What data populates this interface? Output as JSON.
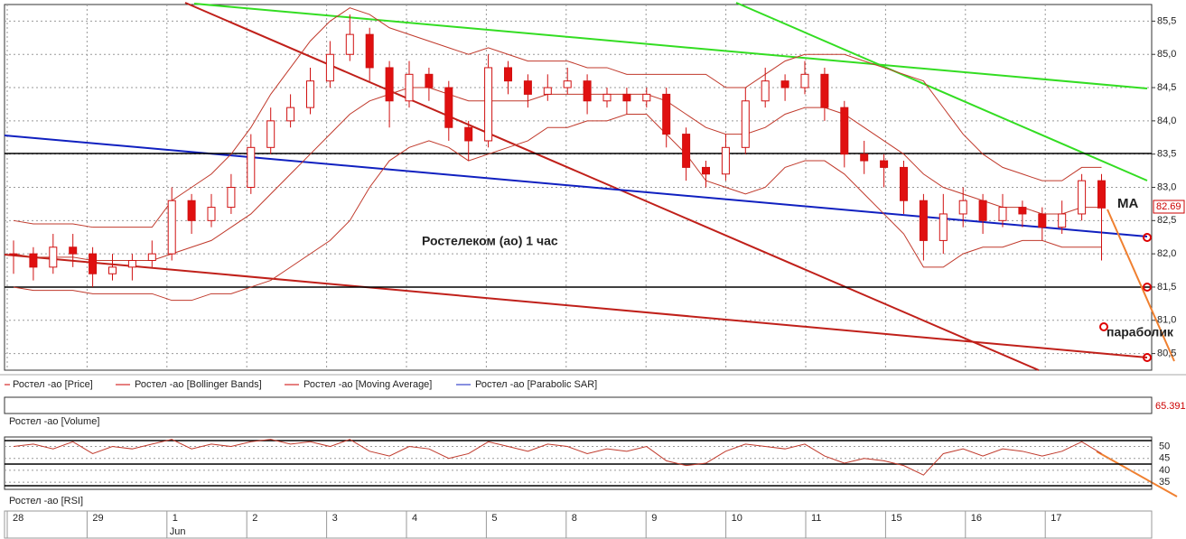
{
  "chart_data": {
    "type": "candlestick",
    "title": "Ростелеком (ао)    1 час",
    "annotations": {
      "ma": "MA",
      "sar": "параболик"
    },
    "last_price_label": "82.69",
    "legend": [
      "Ростел -ао [Price]",
      "Ростел -ао [Bollinger Bands]",
      "Ростел -ао [Moving Average]",
      "Ростел -ао [Parabolic SAR]"
    ],
    "volume_title": "Ростел -ао [Volume]",
    "volume_label": "65.391",
    "rsi_title": "Ростел -ао [RSI]",
    "date_labels": [
      "28",
      "29",
      "1",
      "2",
      "3",
      "4",
      "5",
      "8",
      "9",
      "10",
      "11",
      "15",
      "16",
      "17"
    ],
    "month_label": "Jun",
    "ylim": [
      80.25,
      85.75
    ],
    "yticks": [
      {
        "value": 80.5,
        "label": "80,5"
      },
      {
        "value": 81,
        "label": "81,0"
      },
      {
        "value": 81.5,
        "label": "81,5"
      },
      {
        "value": 82,
        "label": "82,0"
      },
      {
        "value": 82.5,
        "label": "82,5"
      },
      {
        "value": 83,
        "label": "83,0"
      },
      {
        "value": 83.5,
        "label": "83,5"
      },
      {
        "value": 84,
        "label": "84,0"
      },
      {
        "value": 84.5,
        "label": "84,5"
      },
      {
        "value": 85,
        "label": "85,0"
      },
      {
        "value": 85.5,
        "label": "85,5"
      }
    ],
    "candles": [
      [
        82.0,
        82.2,
        81.7,
        82.0
      ],
      [
        82.0,
        82.1,
        81.6,
        81.8
      ],
      [
        81.8,
        82.3,
        81.7,
        82.1
      ],
      [
        82.1,
        82.3,
        81.8,
        82.0
      ],
      [
        82.0,
        82.1,
        81.5,
        81.7
      ],
      [
        81.7,
        82.0,
        81.6,
        81.8
      ],
      [
        81.8,
        82.0,
        81.6,
        81.9
      ],
      [
        81.9,
        82.2,
        81.8,
        82.0
      ],
      [
        82.0,
        83.0,
        81.9,
        82.8
      ],
      [
        82.8,
        82.9,
        82.3,
        82.5
      ],
      [
        82.5,
        82.9,
        82.4,
        82.7
      ],
      [
        82.7,
        83.2,
        82.6,
        83.0
      ],
      [
        83.0,
        83.8,
        82.9,
        83.6
      ],
      [
        83.6,
        84.2,
        83.5,
        84.0
      ],
      [
        84.0,
        84.4,
        83.9,
        84.2
      ],
      [
        84.2,
        84.8,
        84.1,
        84.6
      ],
      [
        84.6,
        85.2,
        84.5,
        85.0
      ],
      [
        85.0,
        85.6,
        84.9,
        85.3
      ],
      [
        85.3,
        85.4,
        84.6,
        84.8
      ],
      [
        84.8,
        84.9,
        83.9,
        84.3
      ],
      [
        84.3,
        84.9,
        84.2,
        84.7
      ],
      [
        84.7,
        84.8,
        84.3,
        84.5
      ],
      [
        84.5,
        84.6,
        83.7,
        83.9
      ],
      [
        83.9,
        84.0,
        83.4,
        83.7
      ],
      [
        83.7,
        85.0,
        83.6,
        84.8
      ],
      [
        84.8,
        84.9,
        84.4,
        84.6
      ],
      [
        84.6,
        84.7,
        84.2,
        84.4
      ],
      [
        84.4,
        84.7,
        84.3,
        84.5
      ],
      [
        84.5,
        84.8,
        84.4,
        84.6
      ],
      [
        84.6,
        84.7,
        84.1,
        84.3
      ],
      [
        84.3,
        84.5,
        84.2,
        84.4
      ],
      [
        84.4,
        84.5,
        84.1,
        84.3
      ],
      [
        84.3,
        84.5,
        84.2,
        84.4
      ],
      [
        84.4,
        84.5,
        83.6,
        83.8
      ],
      [
        83.8,
        83.9,
        83.1,
        83.3
      ],
      [
        83.3,
        83.4,
        83.0,
        83.2
      ],
      [
        83.2,
        83.8,
        83.1,
        83.6
      ],
      [
        83.6,
        84.5,
        83.5,
        84.3
      ],
      [
        84.3,
        84.8,
        84.2,
        84.6
      ],
      [
        84.6,
        84.7,
        84.3,
        84.5
      ],
      [
        84.5,
        84.9,
        84.4,
        84.7
      ],
      [
        84.7,
        84.8,
        84.0,
        84.2
      ],
      [
        84.2,
        84.3,
        83.3,
        83.5
      ],
      [
        83.5,
        83.7,
        83.2,
        83.4
      ],
      [
        83.4,
        83.5,
        83.0,
        83.3
      ],
      [
        83.3,
        83.4,
        82.6,
        82.8
      ],
      [
        82.8,
        82.9,
        81.9,
        82.2
      ],
      [
        82.2,
        82.9,
        82.0,
        82.6
      ],
      [
        82.6,
        83.0,
        82.4,
        82.8
      ],
      [
        82.8,
        82.9,
        82.3,
        82.5
      ],
      [
        82.5,
        82.9,
        82.4,
        82.7
      ],
      [
        82.7,
        82.8,
        82.4,
        82.6
      ],
      [
        82.6,
        82.7,
        82.2,
        82.4
      ],
      [
        82.4,
        82.8,
        82.3,
        82.6
      ],
      [
        82.6,
        83.2,
        82.5,
        83.1
      ],
      [
        83.1,
        83.2,
        81.9,
        82.69
      ]
    ],
    "series": [
      {
        "name": "MA",
        "color": "#c0392b",
        "values": [
          82.0,
          81.95,
          81.95,
          81.95,
          81.9,
          81.9,
          81.9,
          81.9,
          82.0,
          82.1,
          82.2,
          82.4,
          82.6,
          82.9,
          83.2,
          83.5,
          83.8,
          84.1,
          84.3,
          84.4,
          84.5,
          84.5,
          84.4,
          84.3,
          84.3,
          84.3,
          84.3,
          84.4,
          84.4,
          84.4,
          84.4,
          84.4,
          84.4,
          84.3,
          84.1,
          83.9,
          83.8,
          83.8,
          83.9,
          84.1,
          84.2,
          84.2,
          84.1,
          83.9,
          83.7,
          83.5,
          83.2,
          83.0,
          82.9,
          82.8,
          82.7,
          82.7,
          82.6,
          82.6,
          82.7,
          82.7
        ]
      },
      {
        "name": "BB upper",
        "color": "#c0392b",
        "values": [
          82.5,
          82.45,
          82.45,
          82.45,
          82.4,
          82.4,
          82.4,
          82.4,
          82.8,
          83.0,
          83.2,
          83.5,
          83.9,
          84.4,
          84.8,
          85.2,
          85.5,
          85.7,
          85.6,
          85.4,
          85.3,
          85.2,
          85.1,
          85.0,
          85.1,
          85.0,
          84.9,
          84.9,
          84.9,
          84.8,
          84.8,
          84.7,
          84.7,
          84.7,
          84.7,
          84.7,
          84.5,
          84.5,
          84.7,
          84.9,
          85.0,
          85.0,
          85.0,
          84.9,
          84.8,
          84.7,
          84.6,
          84.2,
          83.8,
          83.5,
          83.3,
          83.2,
          83.1,
          83.1,
          83.3,
          83.3
        ]
      },
      {
        "name": "BB lower",
        "color": "#c0392b",
        "values": [
          81.5,
          81.45,
          81.45,
          81.45,
          81.4,
          81.4,
          81.4,
          81.4,
          81.3,
          81.3,
          81.4,
          81.4,
          81.5,
          81.6,
          81.8,
          82.0,
          82.2,
          82.5,
          83.0,
          83.4,
          83.6,
          83.7,
          83.6,
          83.4,
          83.5,
          83.6,
          83.7,
          83.9,
          83.9,
          84.0,
          84.0,
          84.1,
          84.1,
          83.8,
          83.5,
          83.1,
          83.0,
          82.9,
          83.0,
          83.3,
          83.4,
          83.4,
          83.2,
          82.9,
          82.6,
          82.3,
          81.8,
          81.8,
          82.0,
          82.1,
          82.1,
          82.2,
          82.2,
          82.1,
          82.1,
          82.1
        ]
      }
    ],
    "rsi": {
      "color": "#c0392b",
      "ylim": [
        32,
        54
      ],
      "yticks": [
        50,
        45,
        40,
        35
      ],
      "values": [
        50,
        51,
        49,
        52,
        47,
        50,
        49,
        51,
        53,
        49,
        51,
        50,
        52,
        53,
        51,
        52,
        50,
        53,
        48,
        46,
        50,
        49,
        45,
        47,
        52,
        50,
        48,
        51,
        50,
        47,
        49,
        48,
        50,
        44,
        42,
        43,
        48,
        51,
        50,
        49,
        51,
        46,
        43,
        45,
        44,
        42,
        38,
        47,
        49,
        46,
        49,
        48,
        46,
        48,
        52,
        47
      ]
    }
  }
}
